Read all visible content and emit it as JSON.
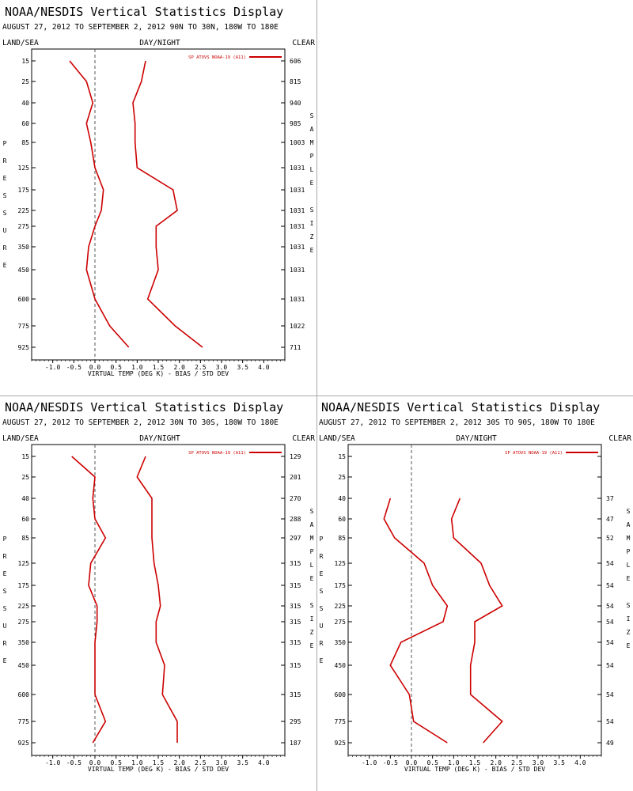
{
  "colors": {
    "series": "#cc0000",
    "axis": "#000000",
    "zero_line": "#555555",
    "divider": "#a8a8a8"
  },
  "common": {
    "title": "NOAA/NESDIS Vertical Statistics Display",
    "left_label": "LAND/SEA",
    "center_label": "DAY/NIGHT",
    "right_label": "CLEAR",
    "pressure_letters": [
      "P",
      "R",
      "E",
      "S",
      "S",
      "U",
      "R",
      "E"
    ],
    "sample_letters": [
      "S",
      "A",
      "M",
      "P",
      "L",
      "E",
      " ",
      "S",
      "I",
      "Z",
      "E"
    ],
    "legend_label": "SP ATOVS NOAA-19 (A11)"
  },
  "chart_data": [
    {
      "type": "line",
      "subtitle": "AUGUST 27, 2012 TO SEPTEMBER 2, 2012  90N TO 30N, 180W TO 180E",
      "xlabel": "VIRTUAL TEMP (DEG K) - BIAS / STD DEV",
      "xlim": [
        -1.5,
        4.5
      ],
      "x_ticks": [
        "-1.0",
        "-0.5",
        "0.0",
        "0.5",
        "1.0",
        "1.5",
        "2.0",
        "2.5",
        "3.0",
        "3.5",
        "4.0"
      ],
      "pressure_levels": [
        "15",
        "25",
        "40",
        "60",
        "85",
        "125",
        "175",
        "225",
        "275",
        "350",
        "450",
        "600",
        "775",
        "925"
      ],
      "sample_size": [
        "606",
        "815",
        "940",
        "985",
        "1003",
        "1031",
        "1031",
        "1031",
        "1031",
        "1031",
        "1031",
        "1031",
        "1022",
        "711"
      ],
      "series": [
        {
          "name": "bias",
          "values": [
            -0.6,
            -0.2,
            -0.05,
            -0.2,
            -0.1,
            0.0,
            0.2,
            0.15,
            0.0,
            -0.15,
            -0.2,
            0.0,
            0.35,
            0.8
          ]
        },
        {
          "name": "std_dev",
          "values": [
            1.2,
            1.1,
            0.9,
            0.95,
            0.95,
            1.0,
            1.85,
            1.95,
            1.45,
            1.45,
            1.5,
            1.25,
            1.9,
            2.55
          ]
        }
      ]
    },
    {
      "type": "line",
      "subtitle": "AUGUST 27, 2012 TO SEPTEMBER 2, 2012  30N TO 30S, 180W TO 180E",
      "xlabel": "VIRTUAL TEMP (DEG K) - BIAS / STD DEV",
      "xlim": [
        -1.5,
        4.5
      ],
      "x_ticks": [
        "-1.0",
        "-0.5",
        "0.0",
        "0.5",
        "1.0",
        "1.5",
        "2.0",
        "2.5",
        "3.0",
        "3.5",
        "4.0"
      ],
      "pressure_levels": [
        "15",
        "25",
        "40",
        "60",
        "85",
        "125",
        "175",
        "225",
        "275",
        "350",
        "450",
        "600",
        "775",
        "925"
      ],
      "sample_size": [
        "129",
        "201",
        "270",
        "288",
        "297",
        "315",
        "315",
        "315",
        "315",
        "315",
        "315",
        "315",
        "295",
        "187"
      ],
      "series": [
        {
          "name": "bias",
          "values": [
            -0.55,
            0.0,
            -0.05,
            0.0,
            0.25,
            -0.1,
            -0.15,
            0.05,
            0.05,
            0.0,
            0.0,
            0.0,
            0.25,
            -0.05
          ]
        },
        {
          "name": "std_dev",
          "values": [
            1.2,
            1.0,
            1.35,
            1.35,
            1.35,
            1.4,
            1.5,
            1.55,
            1.45,
            1.45,
            1.65,
            1.6,
            1.95,
            1.95
          ]
        }
      ]
    },
    {
      "type": "line",
      "subtitle": "AUGUST 27, 2012 TO SEPTEMBER 2, 2012  30S TO 90S, 180W TO 180E",
      "xlabel": "VIRTUAL TEMP (DEG K) - BIAS / STD DEV",
      "xlim": [
        -1.5,
        4.5
      ],
      "x_ticks": [
        "-1.0",
        "-0.5",
        "0.0",
        "0.5",
        "1.0",
        "1.5",
        "2.0",
        "2.5",
        "3.0",
        "3.5",
        "4.0"
      ],
      "pressure_levels": [
        "15",
        "25",
        "40",
        "60",
        "85",
        "125",
        "175",
        "225",
        "275",
        "350",
        "450",
        "600",
        "775",
        "925"
      ],
      "sample_size": [
        "",
        "",
        "37",
        "47",
        "52",
        "54",
        "54",
        "54",
        "54",
        "54",
        "54",
        "54",
        "54",
        "49"
      ],
      "series": [
        {
          "name": "bias",
          "values": [
            null,
            null,
            -0.5,
            -0.65,
            -0.4,
            0.3,
            0.5,
            0.85,
            0.75,
            -0.25,
            -0.5,
            -0.05,
            0.05,
            0.85
          ]
        },
        {
          "name": "std_dev",
          "values": [
            null,
            null,
            1.15,
            0.95,
            1.0,
            1.65,
            1.85,
            2.15,
            1.5,
            1.5,
            1.4,
            1.4,
            2.15,
            1.7
          ]
        }
      ]
    }
  ]
}
